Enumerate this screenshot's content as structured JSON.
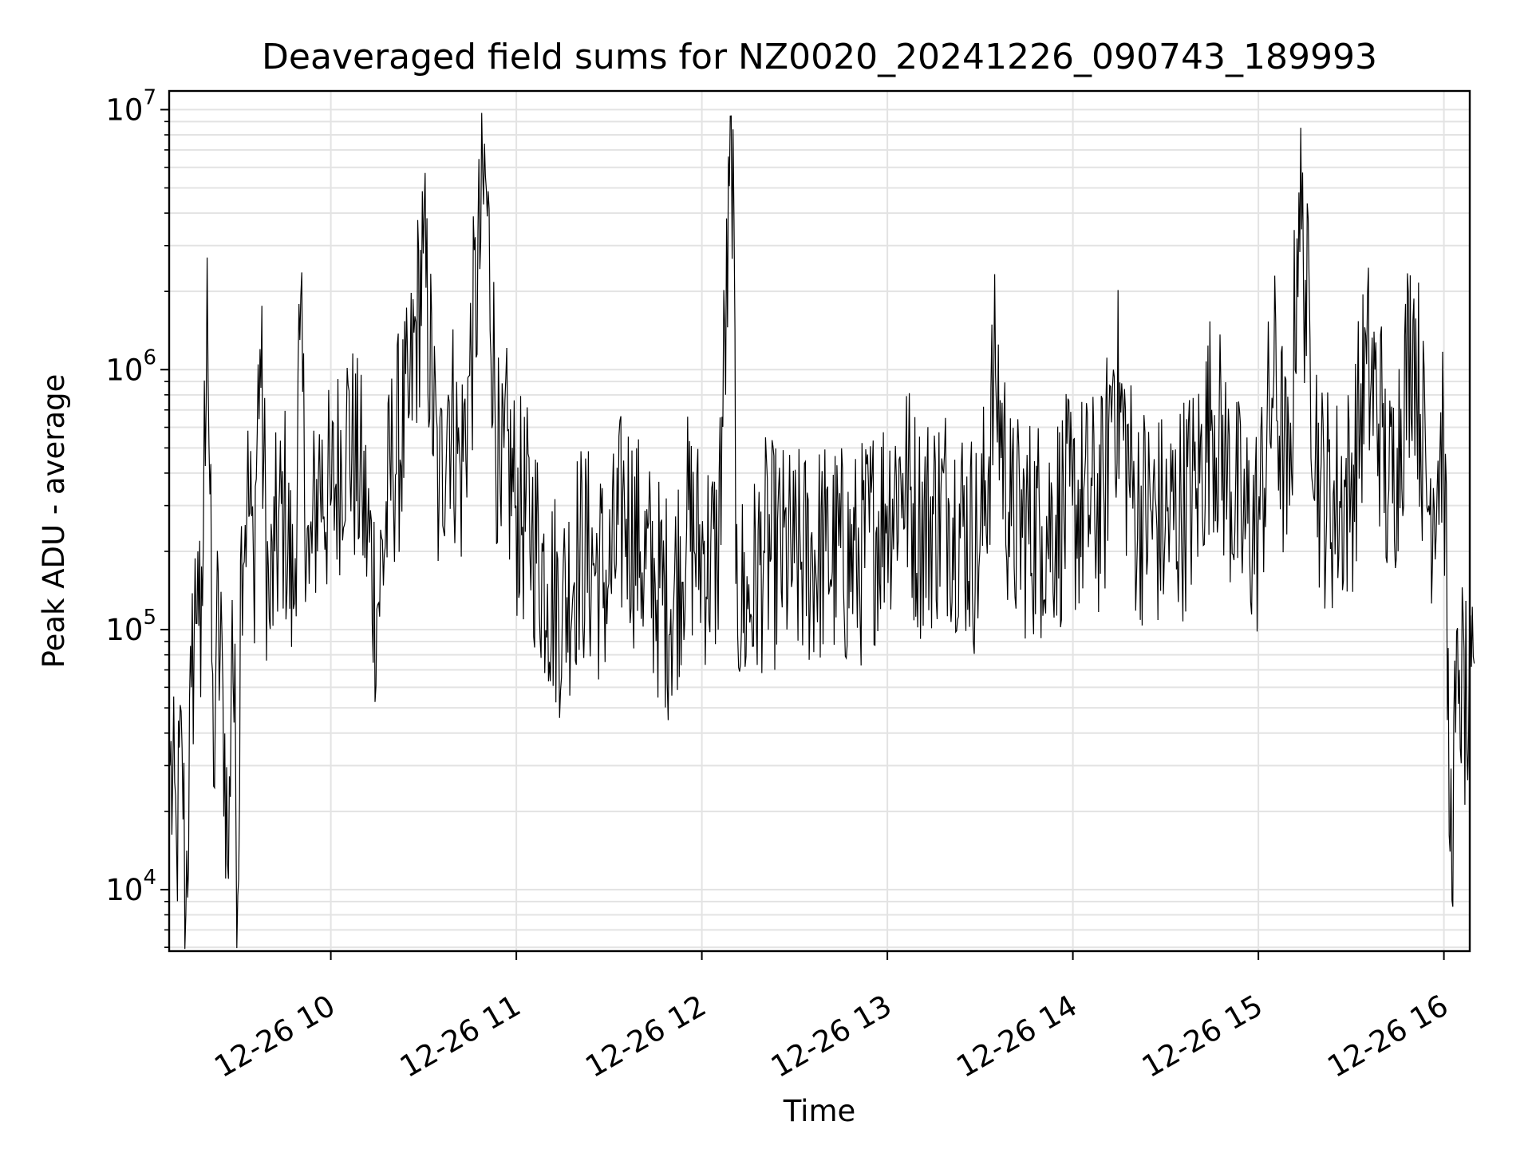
{
  "chart_data": {
    "type": "line",
    "title": "Deaveraged field sums for NZ0020_20241226_090743_189993",
    "xlabel": "Time",
    "ylabel": "Peak ADU - average",
    "y_scale": "log",
    "ylim": [
      5800,
      11800000
    ],
    "xlim": [
      "2024-12-26 09:07:43",
      "2024-12-26 16:00:00"
    ],
    "grid": true,
    "line_color": "#000000",
    "grid_color": "#e3e3e3",
    "x_ticks": [
      {
        "value": "2024-12-26 10:00",
        "label": "12-26 10"
      },
      {
        "value": "2024-12-26 11:00",
        "label": "12-26 11"
      },
      {
        "value": "2024-12-26 12:00",
        "label": "12-26 12"
      },
      {
        "value": "2024-12-26 13:00",
        "label": "12-26 13"
      },
      {
        "value": "2024-12-26 14:00",
        "label": "12-26 14"
      },
      {
        "value": "2024-12-26 15:00",
        "label": "12-26 15"
      },
      {
        "value": "2024-12-26 16:00",
        "label": "12-26 16"
      }
    ],
    "y_ticks": [
      {
        "value": 10000,
        "base": "10",
        "exp": "4"
      },
      {
        "value": 100000,
        "base": "10",
        "exp": "5"
      },
      {
        "value": 1000000,
        "base": "10",
        "exp": "6"
      },
      {
        "value": 10000000,
        "base": "10",
        "exp": "7"
      }
    ],
    "series": [
      {
        "x": [
          "09:08",
          "09:10",
          "09:12",
          "09:13",
          "09:15",
          "09:17",
          "09:18",
          "09:20",
          "09:22",
          "09:23",
          "09:25",
          "09:27",
          "09:28",
          "09:30",
          "09:31",
          "09:33",
          "09:35",
          "09:37",
          "09:40",
          "09:42",
          "09:45",
          "09:48",
          "09:50",
          "09:53",
          "09:56",
          "10:00",
          "10:05",
          "10:10",
          "10:15",
          "10:20",
          "10:25",
          "10:30",
          "10:35",
          "10:38",
          "10:42",
          "10:45",
          "10:50",
          "10:55",
          "10:56",
          "11:00",
          "11:05",
          "11:10",
          "11:15",
          "11:20",
          "11:25",
          "11:30",
          "11:35",
          "11:40",
          "11:45",
          "11:50",
          "11:55",
          "12:00",
          "12:05",
          "12:10",
          "12:11",
          "12:15",
          "12:20",
          "12:30",
          "12:40",
          "12:50",
          "13:00",
          "13:05",
          "13:10",
          "13:20",
          "13:30",
          "13:35",
          "13:40",
          "13:50",
          "14:00",
          "14:10",
          "14:13",
          "14:20",
          "14:30",
          "14:40",
          "14:45",
          "14:50",
          "14:55",
          "15:00",
          "15:05",
          "15:10",
          "15:13",
          "15:20",
          "15:25",
          "15:30",
          "15:35",
          "15:40",
          "15:42",
          "15:45",
          "15:50",
          "15:55",
          "16:00",
          "16:02",
          "16:05",
          "16:08",
          "16:10"
        ],
        "y": [
          30000,
          15000,
          35000,
          8000,
          60000,
          200000,
          55000,
          2700000,
          25000,
          100000,
          60000,
          11000,
          130000,
          9500,
          250000,
          330000,
          180000,
          1200000,
          110000,
          200000,
          300000,
          120000,
          1300000,
          150000,
          400000,
          300000,
          600000,
          350000,
          120000,
          450000,
          650000,
          2800000,
          300000,
          800000,
          400000,
          950000,
          5600000,
          250000,
          500000,
          300000,
          250000,
          150000,
          120000,
          200000,
          180000,
          150000,
          300000,
          200000,
          150000,
          120000,
          250000,
          200000,
          180000,
          8400000,
          150000,
          120000,
          200000,
          180000,
          200000,
          180000,
          300000,
          400000,
          250000,
          300000,
          200000,
          950000,
          250000,
          250000,
          300000,
          300000,
          1000000,
          300000,
          250000,
          350000,
          700000,
          400000,
          250000,
          250000,
          950000,
          300000,
          4800000,
          350000,
          300000,
          350000,
          1050000,
          600000,
          300000,
          500000,
          1550000,
          300000,
          600000,
          14000,
          70000,
          40000,
          50000
        ]
      }
    ]
  }
}
